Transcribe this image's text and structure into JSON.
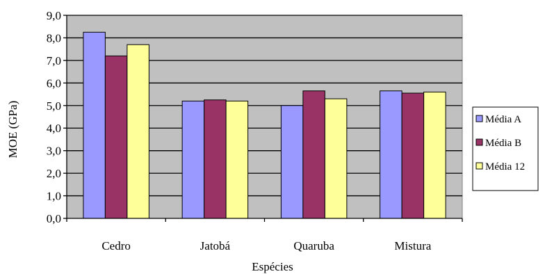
{
  "chart_data": {
    "type": "bar",
    "xlabel": "Espécies",
    "ylabel": "MOE (GPa)",
    "ylim": [
      0,
      9
    ],
    "ytick_step": 1,
    "yticks": [
      "0,0",
      "1,0",
      "2,0",
      "3,0",
      "4,0",
      "5,0",
      "6,0",
      "7,0",
      "8,0",
      "9,0"
    ],
    "categories": [
      "Cedro",
      "Jatobá",
      "Quaruba",
      "Mistura"
    ],
    "series": [
      {
        "name": "Média A",
        "values": [
          8.25,
          5.2,
          5.0,
          5.65
        ],
        "color": "#9999ff"
      },
      {
        "name": "Média B",
        "values": [
          7.2,
          5.25,
          5.65,
          5.55
        ],
        "color": "#993366"
      },
      {
        "name": "Média 12",
        "values": [
          7.7,
          5.2,
          5.3,
          5.6
        ],
        "color": "#ffff99"
      }
    ],
    "plot_background": "#c0c0c0",
    "grid": true,
    "legend_position": "right"
  }
}
